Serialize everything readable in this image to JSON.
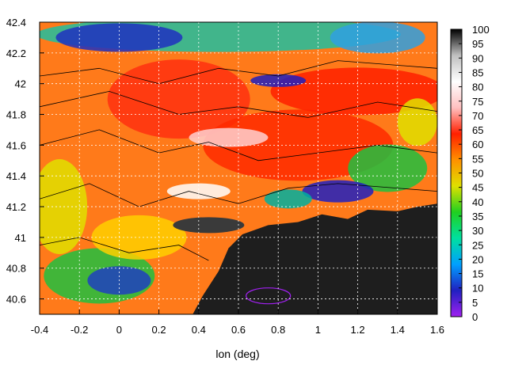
{
  "chart_data": {
    "type": "heatmap",
    "title": "",
    "xlabel": "lon (deg)",
    "ylabel": "",
    "xlim": [
      -0.4,
      1.6
    ],
    "ylim": [
      40.5,
      42.4
    ],
    "x_ticks": [
      "-0.4",
      "-0.2",
      "0",
      "0.2",
      "0.4",
      "0.6",
      "0.8",
      "1",
      "1.2",
      "1.4",
      "1.6"
    ],
    "y_ticks": [
      "40.6",
      "40.8",
      "41",
      "41.2",
      "41.4",
      "41.6",
      "41.8",
      "42",
      "42.2",
      "42.4"
    ],
    "colorbar": {
      "range": [
        0,
        100
      ],
      "ticks": [
        "0",
        "5",
        "10",
        "15",
        "20",
        "25",
        "30",
        "35",
        "40",
        "45",
        "50",
        "55",
        "60",
        "65",
        "70",
        "75",
        "80",
        "85",
        "90",
        "95",
        "100"
      ],
      "palette": [
        "#a020f0",
        "#2020c0",
        "#00a0ff",
        "#00e0a0",
        "#20d020",
        "#e0e000",
        "#ff9000",
        "#ff2000",
        "#ffc0c0",
        "#ffffff",
        "#c0c0c0",
        "#000000"
      ]
    },
    "grid": true,
    "contours": true,
    "sea_color": "#1e1e1e",
    "land_fill": "#ff7a1a"
  }
}
